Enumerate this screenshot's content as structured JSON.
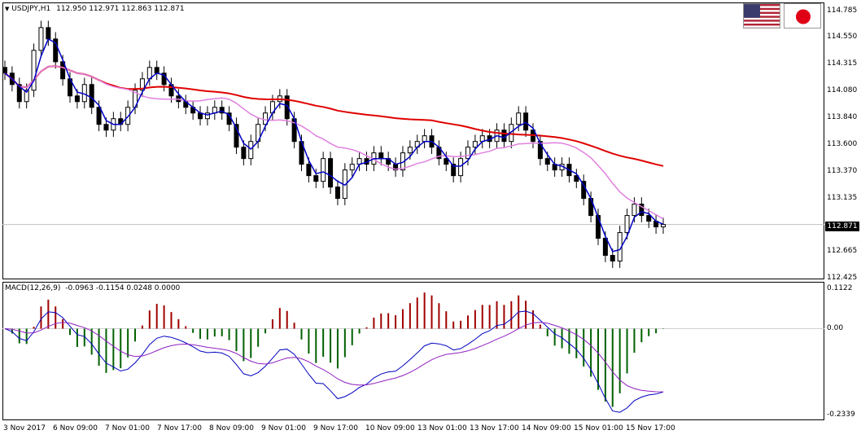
{
  "chart": {
    "symbol_title": "USDJPY,H1",
    "ohlc_text": "112.950 112.971 112.863 112.871",
    "macd_label": "MACD(12,26,9)",
    "macd_values": "-0.0963 -0.1154 0.0248 0.0000",
    "current_price": "112.871"
  },
  "price_axis": [
    "114.785",
    "114.550",
    "114.315",
    "114.080",
    "113.840",
    "113.600",
    "113.370",
    "113.135",
    "112.665",
    "112.425"
  ],
  "macd_axis": [
    "0.1122",
    "0.00",
    "-0.2339"
  ],
  "time_axis": [
    "3 Nov 2017",
    "6 Nov 09:00",
    "7 Nov 01:00",
    "7 Nov 17:00",
    "8 Nov 09:00",
    "9 Nov 01:00",
    "9 Nov 17:00",
    "10 Nov 09:00",
    "13 Nov 01:00",
    "13 Nov 17:00",
    "14 Nov 09:00",
    "15 Nov 01:00",
    "15 Nov 17:00"
  ],
  "flags": {
    "base": "USD",
    "quote": "JPY"
  },
  "colors": {
    "ma_long": "#e00000",
    "ma_mid": "#e080e0",
    "ma_fast": "#0000c8",
    "hist_pos": "#a00000",
    "hist_neg": "#006000",
    "signal": "#9020c0"
  },
  "chart_data": {
    "type": "candlestick",
    "ylim": [
      112.425,
      114.785
    ],
    "macd_ylim": [
      -0.2339,
      0.1122
    ],
    "close": [
      114.2,
      114.1,
      113.95,
      114.05,
      114.4,
      114.6,
      114.5,
      114.3,
      114.15,
      114.0,
      113.95,
      114.1,
      113.9,
      113.75,
      113.7,
      113.8,
      113.75,
      113.9,
      114.05,
      114.15,
      114.25,
      114.2,
      114.1,
      114.0,
      113.95,
      113.9,
      113.85,
      113.8,
      113.85,
      113.9,
      113.85,
      113.75,
      113.55,
      113.45,
      113.6,
      113.75,
      113.85,
      113.95,
      114.0,
      113.8,
      113.6,
      113.4,
      113.3,
      113.25,
      113.45,
      113.2,
      113.1,
      113.35,
      113.4,
      113.45,
      113.4,
      113.5,
      113.45,
      113.4,
      113.35,
      113.5,
      113.55,
      113.6,
      113.65,
      113.55,
      113.45,
      113.4,
      113.3,
      113.45,
      113.55,
      113.6,
      113.65,
      113.6,
      113.7,
      113.6,
      113.75,
      113.85,
      113.7,
      113.6,
      113.45,
      113.4,
      113.35,
      113.4,
      113.3,
      113.25,
      113.1,
      112.95,
      112.75,
      112.6,
      112.55,
      112.8,
      112.95,
      113.05,
      112.95,
      112.9,
      112.85,
      112.871
    ]
  }
}
